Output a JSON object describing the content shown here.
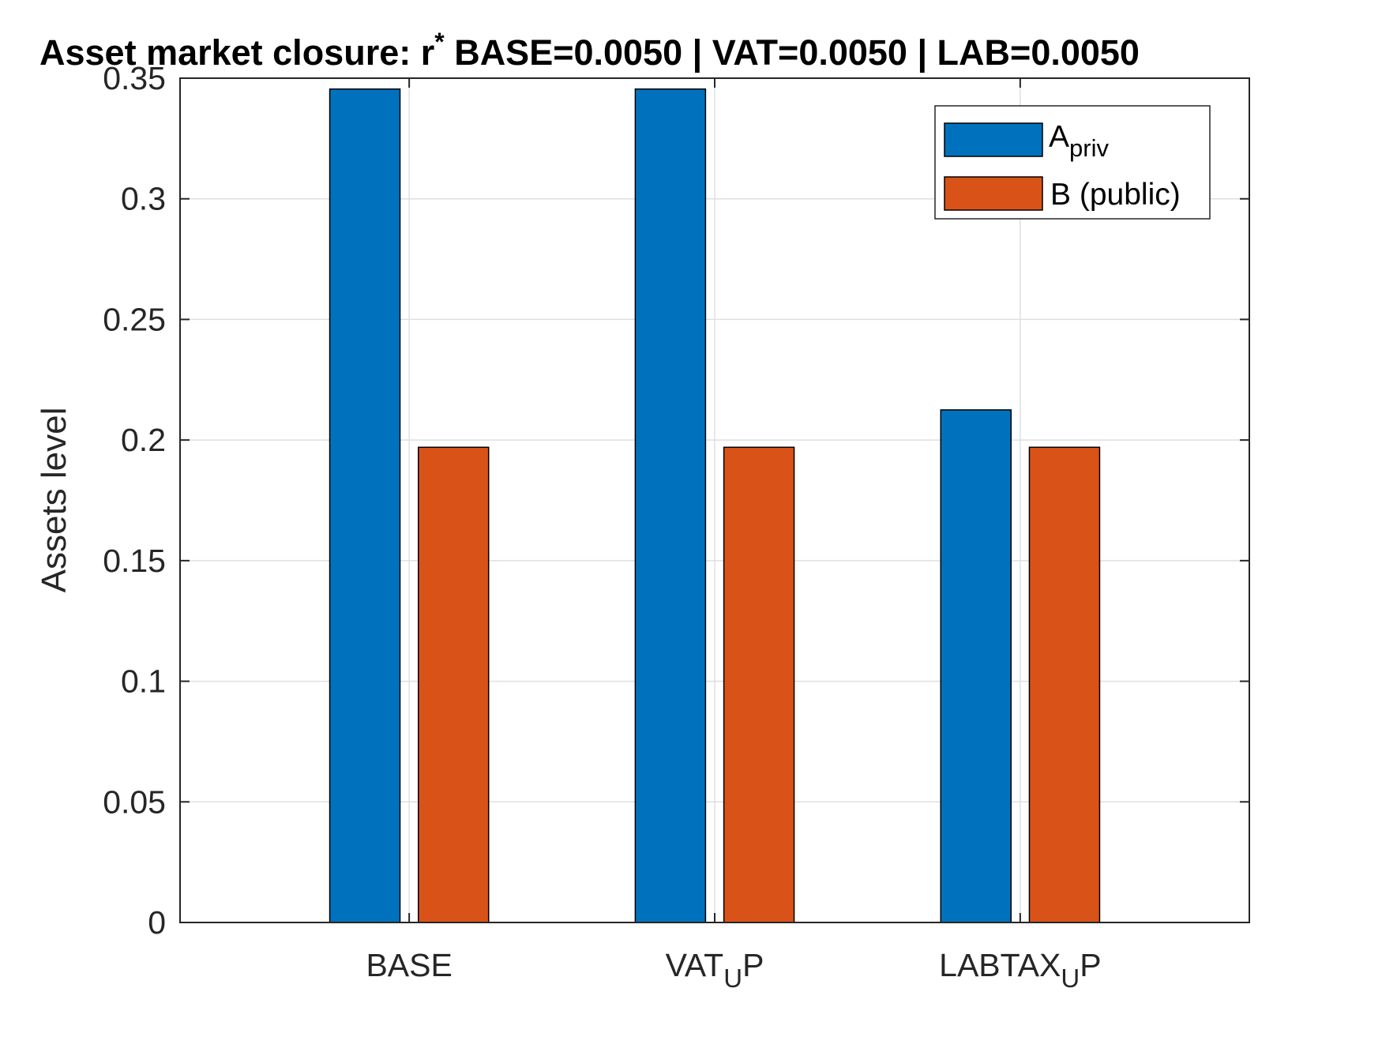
{
  "chart_data": {
    "type": "bar",
    "title": {
      "prefix": "Asset market closure: r",
      "superscript": "*",
      "suffix": " BASE=0.0050 | VAT=0.0050 | LAB=0.0050"
    },
    "xlabel": "",
    "ylabel": "Assets level",
    "ylim": [
      0,
      0.35
    ],
    "yticks": [
      "0",
      "0.05",
      "0.1",
      "0.15",
      "0.2",
      "0.25",
      "0.3",
      "0.35"
    ],
    "categories": [
      {
        "base": "BASE",
        "sub": "",
        "tail": ""
      },
      {
        "base": "VAT",
        "sub": "U",
        "tail": "P"
      },
      {
        "base": "LABTAX",
        "sub": "U",
        "tail": "P"
      }
    ],
    "series": [
      {
        "name": "A",
        "name_sub": "priv",
        "color": "#0072BD",
        "values": [
          0.3455,
          0.3455,
          0.2125
        ]
      },
      {
        "name": "B (public)",
        "name_sub": "",
        "color": "#D95319",
        "values": [
          0.197,
          0.197,
          0.197
        ]
      }
    ],
    "grid": true,
    "legend_position": "top-right"
  }
}
